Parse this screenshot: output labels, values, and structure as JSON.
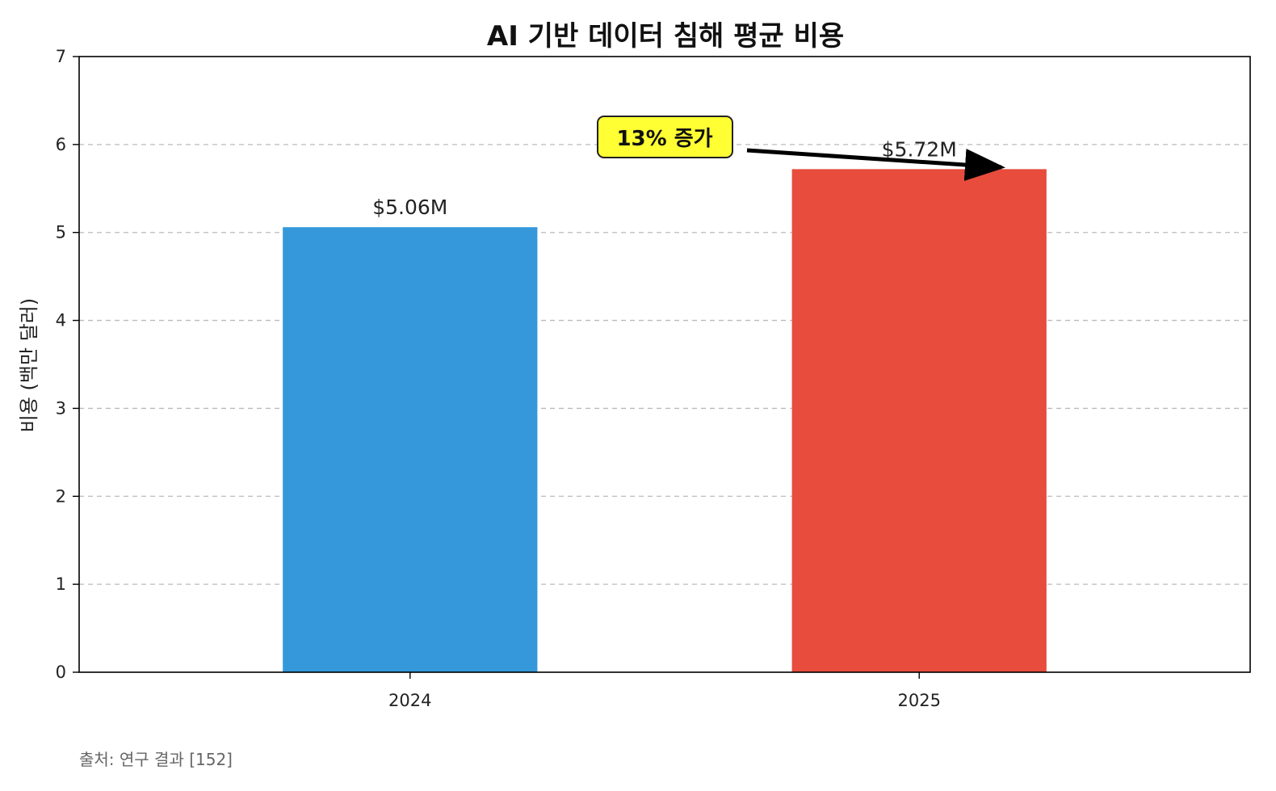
{
  "chart_data": {
    "type": "bar",
    "title": "AI 기반 데이터 침해 평균 비용",
    "xlabel": "",
    "ylabel": "비용 (백만 달러)",
    "categories": [
      "2024",
      "2025"
    ],
    "values": [
      5.06,
      5.72
    ],
    "value_labels": [
      "$5.06M",
      "$5.72M"
    ],
    "bar_colors": [
      "#3498db",
      "#e74c3c"
    ],
    "ylim": [
      0,
      7
    ],
    "yticks": [
      0,
      1,
      2,
      3,
      4,
      5,
      6,
      7
    ],
    "grid": "horizontal dashed",
    "legend": "none",
    "annotation": {
      "text": "13% 증가",
      "box_color": "#ffff33",
      "points_to": "2025"
    },
    "source": "출처: 연구 결과 [152]"
  }
}
